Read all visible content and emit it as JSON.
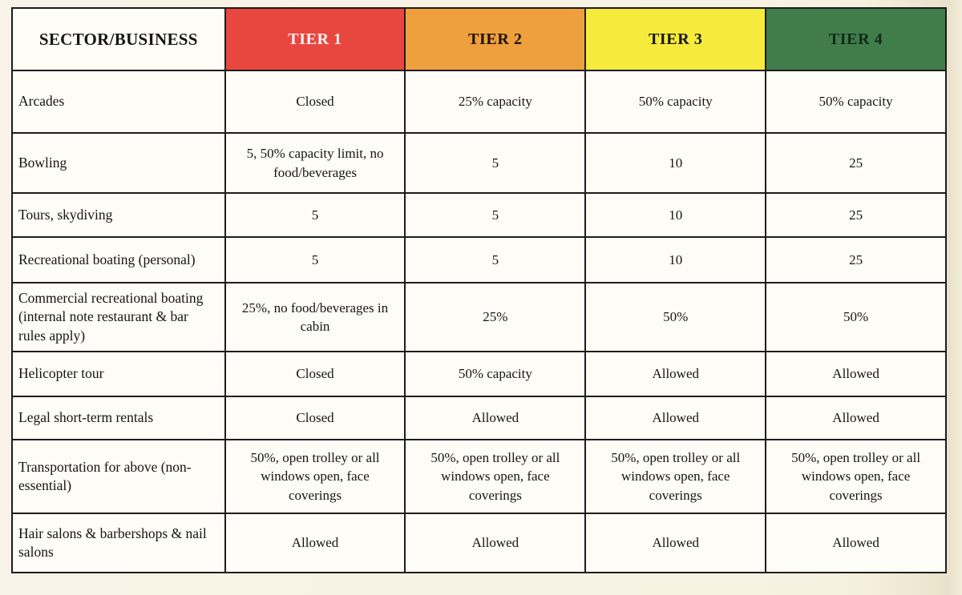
{
  "table": {
    "header": {
      "sector_label": "SECTOR/BUSINESS",
      "tiers": [
        {
          "label": "TIER 1",
          "bg": "#e8473f",
          "text_color": "#fdf3f1"
        },
        {
          "label": "TIER 2",
          "bg": "#efa03e",
          "text_color": "#1d1208"
        },
        {
          "label": "TIER 3",
          "bg": "#f5eb3d",
          "text_color": "#171711"
        },
        {
          "label": "TIER 4",
          "bg": "#417c4b",
          "text_color": "#102a17"
        }
      ]
    },
    "rows": [
      {
        "sector": "Arcades",
        "values": [
          "Closed",
          "25% capacity",
          "50% capacity",
          "50% capacity"
        ]
      },
      {
        "sector": "Bowling",
        "values": [
          "5, 50% capacity limit, no food/beverages",
          "5",
          "10",
          "25"
        ]
      },
      {
        "sector": "Tours, skydiving",
        "values": [
          "5",
          "5",
          "10",
          "25"
        ]
      },
      {
        "sector": "Recreational boating (personal)",
        "values": [
          "5",
          "5",
          "10",
          "25"
        ]
      },
      {
        "sector": "Commercial recreational boating (internal note restaurant & bar rules apply)",
        "values": [
          "25%, no food/beverages in cabin",
          "25%",
          "50%",
          "50%"
        ]
      },
      {
        "sector": "Helicopter tour",
        "values": [
          "Closed",
          "50% capacity",
          "Allowed",
          "Allowed"
        ]
      },
      {
        "sector": "Legal short-term rentals",
        "values": [
          "Closed",
          "Allowed",
          "Allowed",
          "Allowed"
        ]
      },
      {
        "sector": "Transportation for above (non-essential)",
        "values": [
          "50%, open trolley or all windows open, face coverings",
          "50%, open trolley or all windows open, face coverings",
          "50%, open trolley or all windows open, face coverings",
          "50%, open trolley or all windows open, face coverings"
        ]
      },
      {
        "sector": "Hair salons & barbershops & nail salons",
        "values": [
          "Allowed",
          "Allowed",
          "Allowed",
          "Allowed"
        ]
      }
    ]
  }
}
